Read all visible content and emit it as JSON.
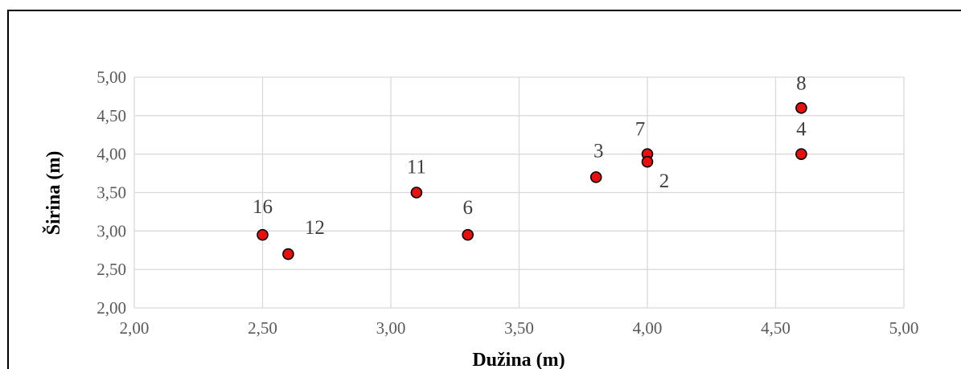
{
  "chart_data": {
    "type": "scatter",
    "title": "",
    "xlabel": "Dužina (m)",
    "ylabel": "Širina (m)",
    "xlim": [
      2.0,
      5.0
    ],
    "ylim": [
      2.0,
      5.0
    ],
    "x_ticks": [
      "2,00",
      "2,50",
      "3,00",
      "3,50",
      "4,00",
      "4,50",
      "5,00"
    ],
    "y_ticks": [
      "2,00",
      "2,50",
      "3,00",
      "3,50",
      "4,00",
      "4,50",
      "5,00"
    ],
    "grid": true,
    "legend": "none",
    "marker_color": "#e8100f",
    "points": [
      {
        "label": "16",
        "x": 2.5,
        "y": 2.95
      },
      {
        "label": "12",
        "x": 2.6,
        "y": 2.7
      },
      {
        "label": "11",
        "x": 3.1,
        "y": 3.5
      },
      {
        "label": "6",
        "x": 3.3,
        "y": 2.95
      },
      {
        "label": "3",
        "x": 3.8,
        "y": 3.7
      },
      {
        "label": "7",
        "x": 4.0,
        "y": 4.0
      },
      {
        "label": "2",
        "x": 4.0,
        "y": 3.9
      },
      {
        "label": "8",
        "x": 4.6,
        "y": 4.6
      },
      {
        "label": "4",
        "x": 4.6,
        "y": 4.0
      }
    ]
  }
}
